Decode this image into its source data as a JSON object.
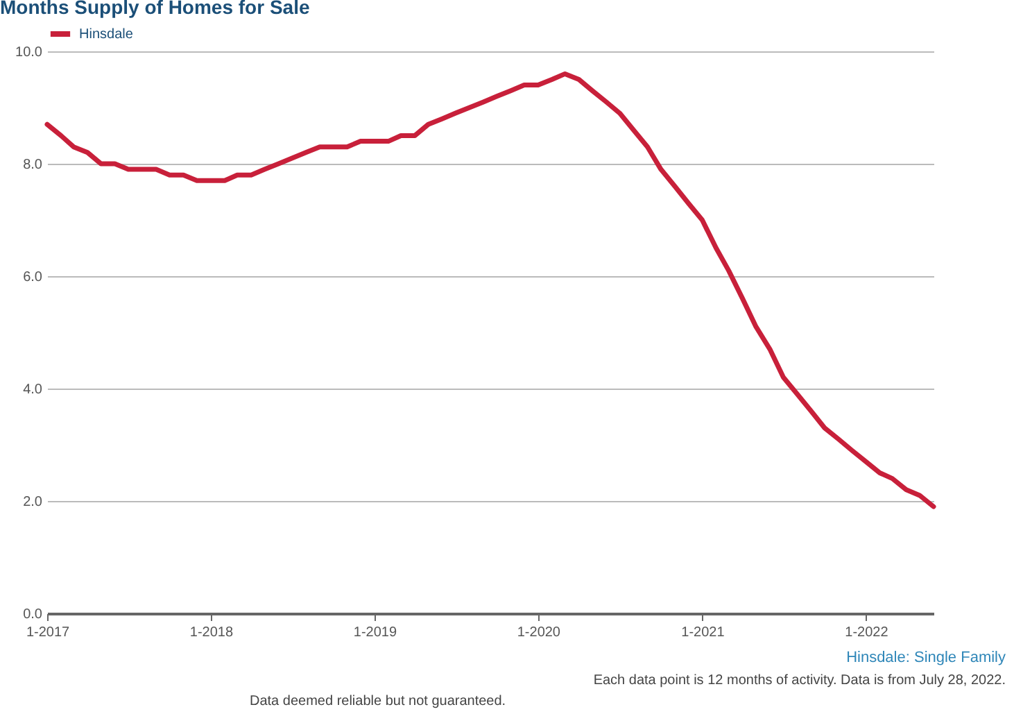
{
  "chart_data": {
    "type": "line",
    "title": "Months Supply of Homes for Sale",
    "x": [
      "2017-01",
      "2017-02",
      "2017-03",
      "2017-04",
      "2017-05",
      "2017-06",
      "2017-07",
      "2017-08",
      "2017-09",
      "2017-10",
      "2017-11",
      "2017-12",
      "2018-01",
      "2018-02",
      "2018-03",
      "2018-04",
      "2018-05",
      "2018-06",
      "2018-07",
      "2018-08",
      "2018-09",
      "2018-10",
      "2018-11",
      "2018-12",
      "2019-01",
      "2019-02",
      "2019-03",
      "2019-04",
      "2019-05",
      "2019-06",
      "2019-07",
      "2019-08",
      "2019-09",
      "2019-10",
      "2019-11",
      "2019-12",
      "2020-01",
      "2020-02",
      "2020-03",
      "2020-04",
      "2020-05",
      "2020-06",
      "2020-07",
      "2020-08",
      "2020-09",
      "2020-10",
      "2020-11",
      "2020-12",
      "2021-01",
      "2021-02",
      "2021-03",
      "2021-04",
      "2021-05",
      "2021-06",
      "2021-07",
      "2021-08",
      "2021-09",
      "2021-10",
      "2021-11",
      "2021-12",
      "2022-01",
      "2022-02",
      "2022-03",
      "2022-04",
      "2022-05",
      "2022-06"
    ],
    "series": [
      {
        "name": "Hinsdale",
        "color": "#c8203a",
        "values": [
          8.7,
          8.5,
          8.3,
          8.2,
          8.0,
          8.0,
          7.9,
          7.9,
          7.9,
          7.8,
          7.8,
          7.7,
          7.7,
          7.7,
          7.8,
          7.8,
          7.9,
          8.0,
          8.1,
          8.2,
          8.3,
          8.3,
          8.3,
          8.4,
          8.4,
          8.4,
          8.5,
          8.5,
          8.7,
          8.8,
          8.9,
          9.0,
          9.1,
          9.2,
          9.3,
          9.4,
          9.4,
          9.5,
          9.6,
          9.5,
          9.3,
          9.1,
          8.9,
          8.6,
          8.3,
          7.9,
          7.6,
          7.3,
          7.0,
          6.5,
          6.1,
          5.6,
          5.1,
          4.7,
          4.2,
          3.9,
          3.6,
          3.3,
          3.1,
          2.9,
          2.7,
          2.5,
          2.4,
          2.2,
          2.1,
          1.9
        ]
      }
    ],
    "xlim": [
      "2017-01",
      "2022-06"
    ],
    "xticks": [
      {
        "value": "2017-01",
        "label": "1-2017"
      },
      {
        "value": "2018-01",
        "label": "1-2018"
      },
      {
        "value": "2019-01",
        "label": "1-2019"
      },
      {
        "value": "2020-01",
        "label": "1-2020"
      },
      {
        "value": "2021-01",
        "label": "1-2021"
      },
      {
        "value": "2022-01",
        "label": "1-2022"
      }
    ],
    "ylim": [
      0,
      10
    ],
    "yticks": [
      {
        "value": 0,
        "label": "0.0"
      },
      {
        "value": 2,
        "label": "2.0"
      },
      {
        "value": 4,
        "label": "4.0"
      },
      {
        "value": 6,
        "label": "6.0"
      },
      {
        "value": 8,
        "label": "8.0"
      },
      {
        "value": 10,
        "label": "10.0"
      }
    ],
    "grid": "y",
    "legend": "top",
    "marker": "none",
    "line_style": "solid",
    "annotations": [
      "Hinsdale: Single Family",
      "Each data point is 12 months of activity. Data is from July 28, 2022.",
      "Data deemed reliable but not guaranteed."
    ]
  }
}
